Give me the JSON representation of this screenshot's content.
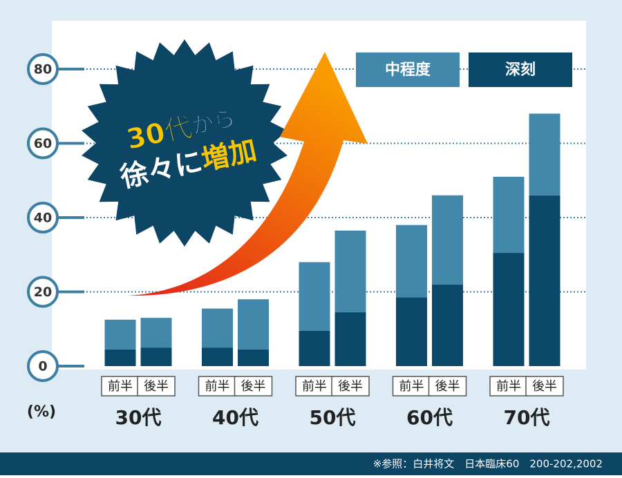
{
  "chart_data": {
    "type": "bar",
    "stacked": true,
    "y_label": "(%)",
    "annotation": {
      "line1": [
        "30代",
        "から"
      ],
      "line2": [
        "徐々に",
        "増加"
      ]
    },
    "groups": [
      "30代",
      "40代",
      "50代",
      "60代",
      "70代"
    ],
    "categories": [
      "前半",
      "後半",
      "前半",
      "後半",
      "前半",
      "後半",
      "前半",
      "後半",
      "前半",
      "後半"
    ],
    "series": [
      {
        "name": "中程度",
        "color": "#4288ab",
        "values": [
          8,
          8,
          10.5,
          13.5,
          18.5,
          22,
          19.5,
          24,
          20.5,
          22
        ]
      },
      {
        "name": "深刻",
        "color": "#0b496a",
        "values": [
          4.5,
          5,
          5,
          4.5,
          9.5,
          14.5,
          18.5,
          22,
          30.5,
          46
        ]
      }
    ],
    "ylim": [
      0,
      80
    ],
    "yticks": [
      0,
      20,
      40,
      60,
      80
    ],
    "grid": true,
    "footer": "※参照：白井将文　日本臨床60　200-202,2002"
  }
}
